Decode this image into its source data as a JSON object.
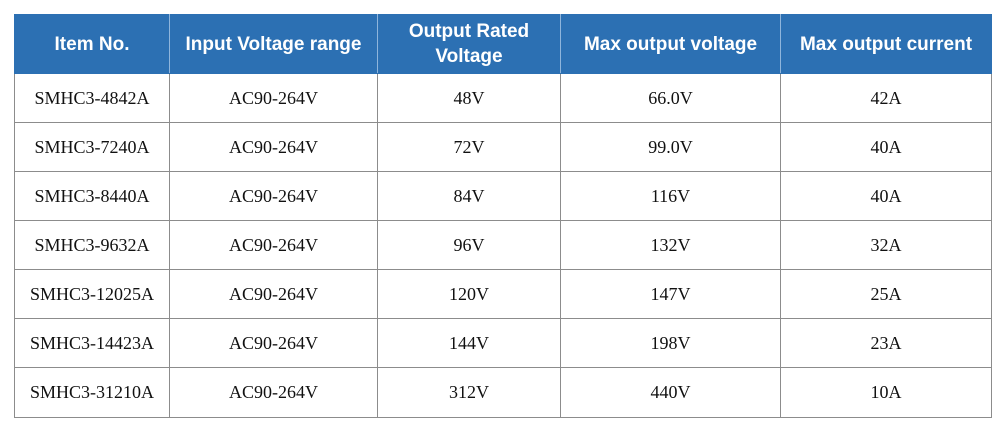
{
  "table": {
    "headers": [
      "Item No.",
      "Input Voltage range",
      "Output Rated Voltage",
      "Max output voltage",
      "Max output current"
    ],
    "rows": [
      [
        "SMHC3-4842A",
        "AC90-264V",
        "48V",
        "66.0V",
        "42A"
      ],
      [
        "SMHC3-7240A",
        "AC90-264V",
        "72V",
        "99.0V",
        "40A"
      ],
      [
        "SMHC3-8440A",
        "AC90-264V",
        "84V",
        "116V",
        "40A"
      ],
      [
        "SMHC3-9632A",
        "AC90-264V",
        "96V",
        "132V",
        "32A"
      ],
      [
        "SMHC3-12025A",
        "AC90-264V",
        "120V",
        "147V",
        "25A"
      ],
      [
        "SMHC3-14423A",
        "AC90-264V",
        "144V",
        "198V",
        "23A"
      ],
      [
        "SMHC3-31210A",
        "AC90-264V",
        "312V",
        "440V",
        "10A"
      ]
    ]
  },
  "colors": {
    "header_bg": "#2c70b3",
    "header_text": "#ffffff",
    "grid": "#8c8c8c"
  }
}
